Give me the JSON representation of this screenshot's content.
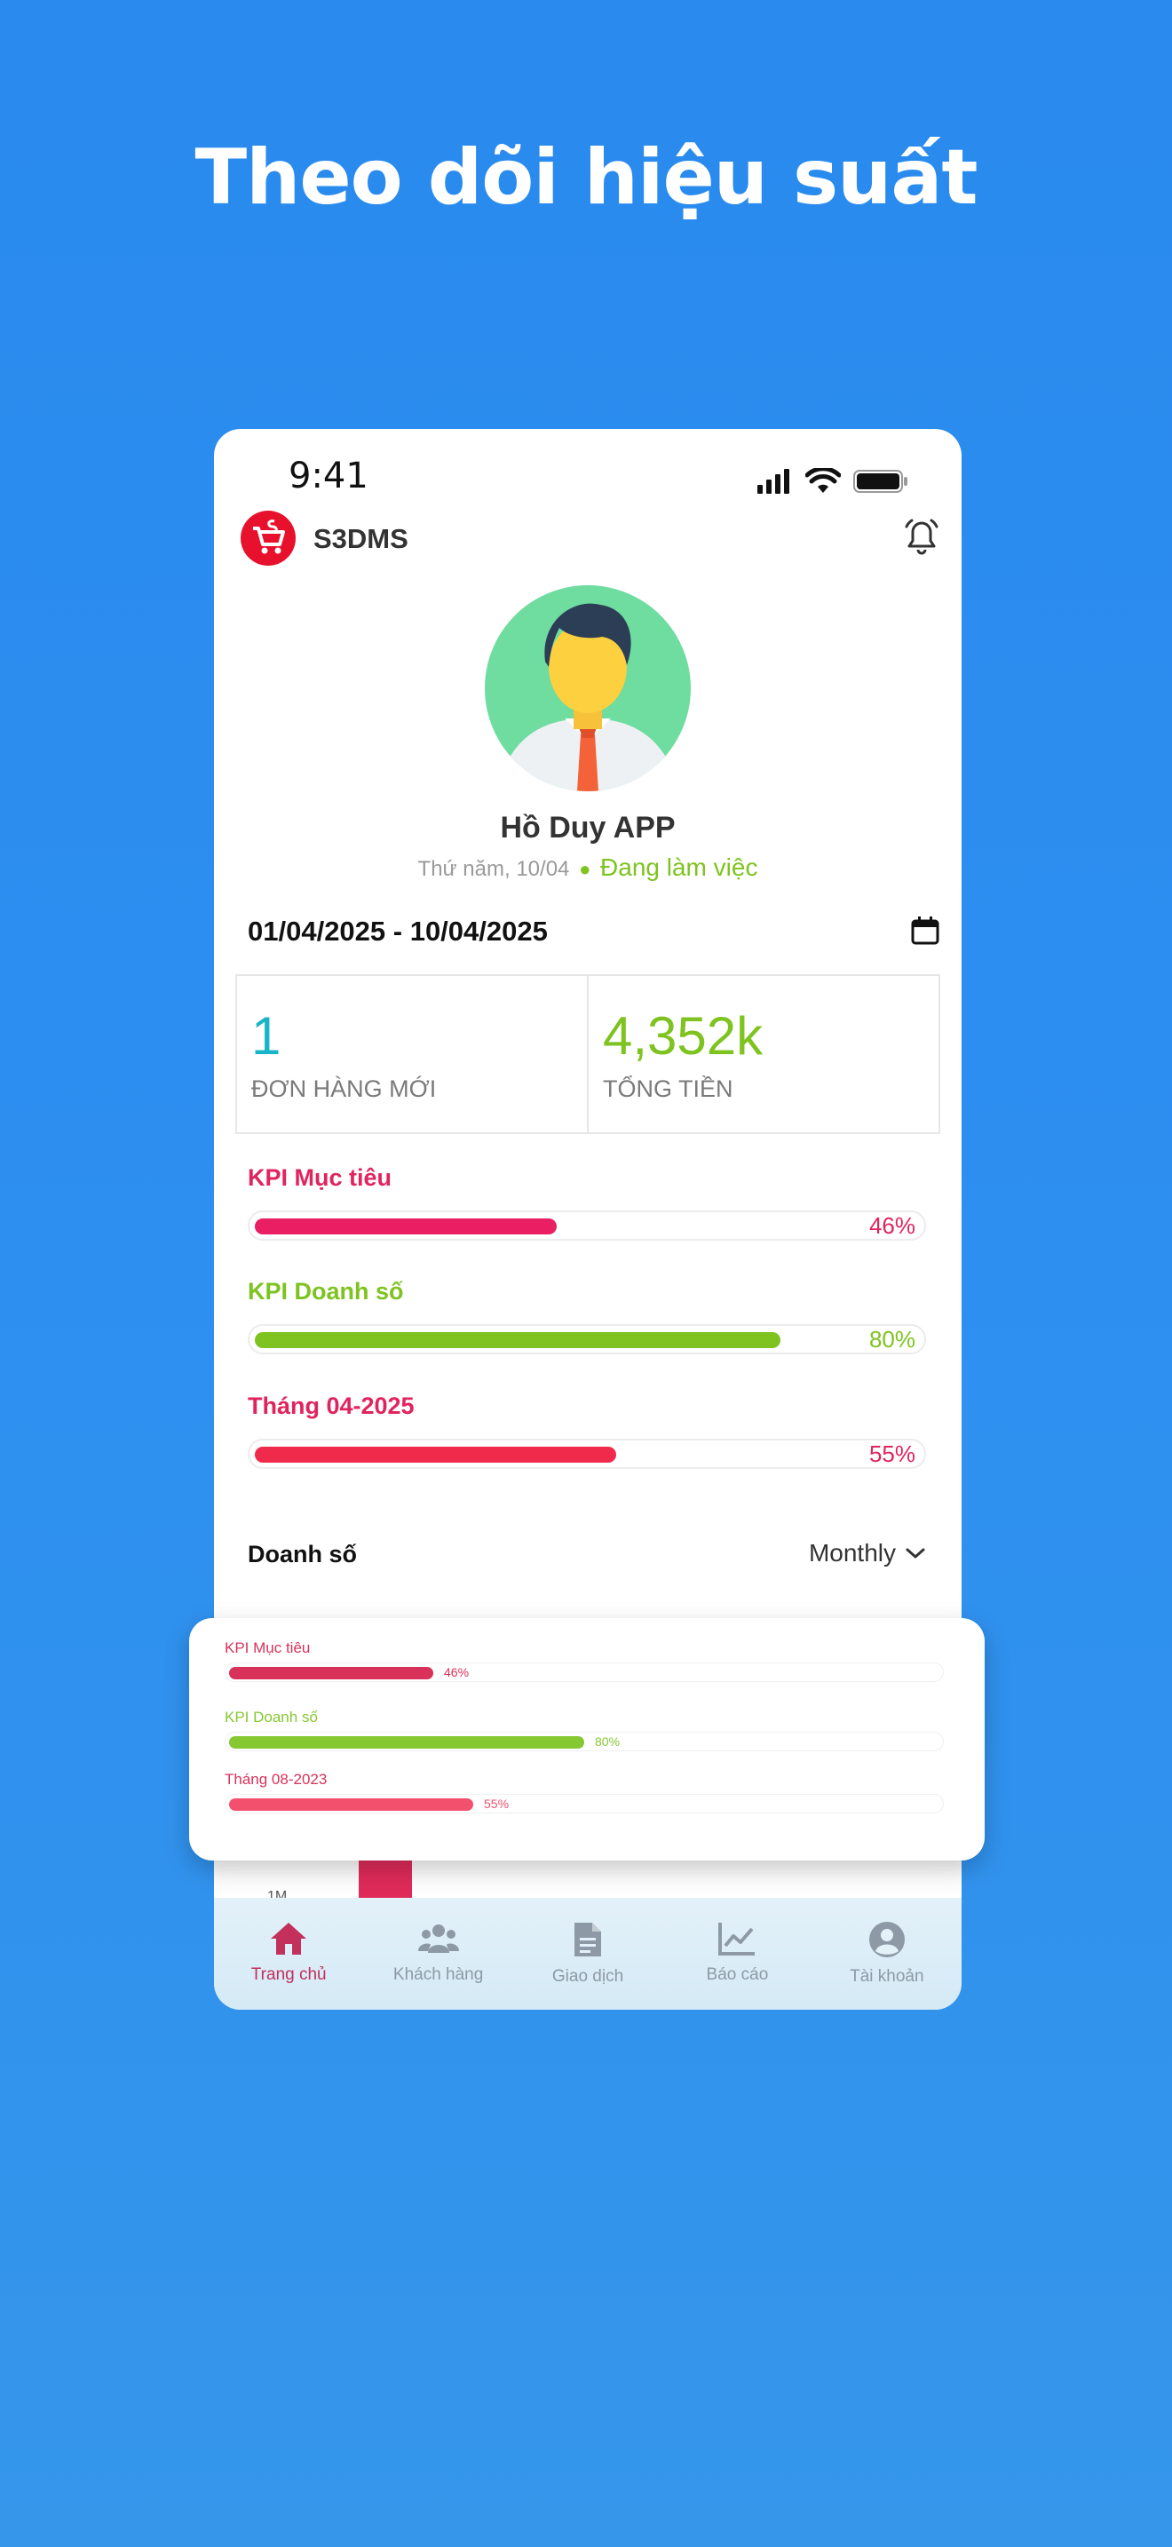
{
  "headline": "Theo dõi hiệu suất",
  "status_bar": {
    "time": "9:41"
  },
  "app": {
    "name": "S3DMS"
  },
  "user": {
    "name": "Hồ Duy APP",
    "day": "Thứ năm,",
    "date": "10/04",
    "status": "Đang làm việc"
  },
  "date_range": "01/04/2025 - 10/04/2025",
  "stats": [
    {
      "value": "1",
      "label": "ĐƠN HÀNG MỚI",
      "color": "#17b5c7"
    },
    {
      "value": "4,352k",
      "label": "TỔNG TIỀN",
      "color": "#7ec320"
    }
  ],
  "kpis": [
    {
      "title": "KPI Mục tiêu",
      "percent": 46,
      "percent_label": "46%",
      "color": "#e91e63"
    },
    {
      "title": "KPI Doanh số",
      "percent": 80,
      "percent_label": "80%",
      "color": "#7ec320"
    },
    {
      "title": "Tháng 04-2025",
      "percent": 55,
      "percent_label": "55%",
      "color": "#f02a4b"
    }
  ],
  "sales": {
    "title": "Doanh số",
    "filter": "Monthly"
  },
  "chart_peek": {
    "y_label": "1M"
  },
  "overlay_card": {
    "kpis": [
      {
        "title": "KPI Mục tiêu",
        "percent": 46,
        "percent_label": "46%",
        "color": "#d9325a"
      },
      {
        "title": "KPI Doanh số",
        "percent": 80,
        "percent_label": "80%",
        "color": "#86c832"
      },
      {
        "title": "Tháng 08-2023",
        "percent": 55,
        "percent_label": "55%",
        "color": "#f3506e"
      }
    ]
  },
  "nav": [
    {
      "label": "Trang chủ",
      "icon": "home-icon",
      "active": true
    },
    {
      "label": "Khách hàng",
      "icon": "customers-icon",
      "active": false
    },
    {
      "label": "Giao dịch",
      "icon": "document-icon",
      "active": false
    },
    {
      "label": "Báo cáo",
      "icon": "chart-icon",
      "active": false
    },
    {
      "label": "Tài khoản",
      "icon": "account-icon",
      "active": false
    }
  ]
}
